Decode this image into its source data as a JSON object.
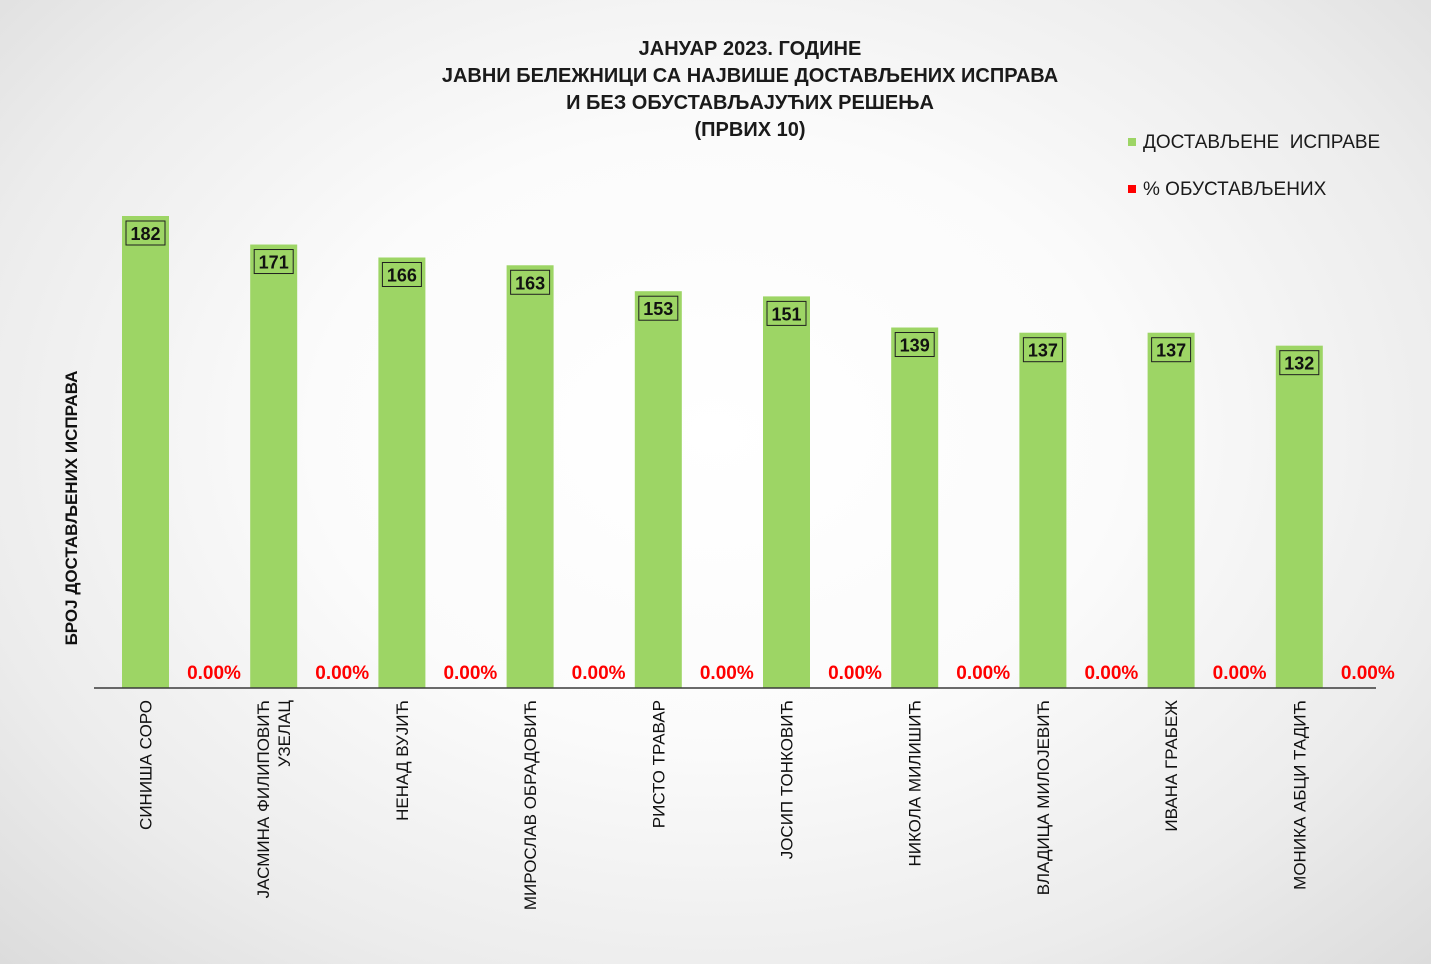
{
  "chart_data": {
    "type": "bar",
    "title_lines": [
      "ЈАНУАР 2023. ГОДИНЕ",
      "ЈАВНИ БЕЛЕЖНИЦИ СА НАЈВИШЕ ДОСТАВЉЕНИХ ИСПРАВА",
      "И БЕЗ ОБУСТАВЉАЈУЋИХ РЕШЕЊА",
      "(ПРВИХ 10)"
    ],
    "ylabel": "БРОЈ ДОСТАВЉЕНИХ ИСПРАВА",
    "xlabel": "",
    "legend_position": "top-right",
    "grid": false,
    "ylim": [
      0,
      200
    ],
    "categories": [
      [
        "СИНИША СОРО"
      ],
      [
        "ЈАСМИНА ФИЛИПОВИЋ",
        "УЗЕЛАЦ"
      ],
      [
        "НЕНАД ВУЈИЋ"
      ],
      [
        "МИРОСЛАВ ОБРАДОВИЋ"
      ],
      [
        "РИСТО ТРАВАР"
      ],
      [
        "ЈОСИП ТОНКОВИЋ"
      ],
      [
        "НИКОЛА МИЛИШИЋ"
      ],
      [
        "ВЛАДИЦА МИЛОЈЕВИЋ"
      ],
      [
        "ИВАНА ГРАБЕЖ"
      ],
      [
        "МОНИКА АБЦИ ТАДИЋ"
      ]
    ],
    "series": [
      {
        "name": "ДОСТАВЉЕНЕ  ИСПРАВЕ",
        "color": "#9dd565",
        "values": [
          182,
          171,
          166,
          163,
          153,
          151,
          139,
          137,
          137,
          132
        ]
      },
      {
        "name": "% ОБУСТАВЉЕНИХ",
        "color": "#ff0000",
        "values": [
          0,
          0,
          0,
          0,
          0,
          0,
          0,
          0,
          0,
          0
        ],
        "labels": [
          "0.00%",
          "0.00%",
          "0.00%",
          "0.00%",
          "0.00%",
          "0.00%",
          "0.00%",
          "0.00%",
          "0.00%",
          "0.00%"
        ]
      }
    ]
  }
}
